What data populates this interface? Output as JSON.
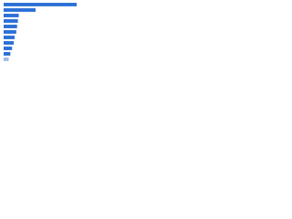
{
  "chart_data": {
    "type": "bar",
    "orientation": "horizontal",
    "categories": [
      null,
      null,
      null,
      null,
      null,
      null,
      null,
      null,
      null,
      null,
      null
    ],
    "values": [
      87,
      38,
      18,
      17,
      16,
      15,
      13,
      12,
      10,
      8,
      6
    ],
    "colors": [
      "#2a6fd6",
      "#2a6fd6",
      "#2a6fd6",
      "#2a6fd6",
      "#2a6fd6",
      "#2a6fd6",
      "#2a6fd6",
      "#2a6fd6",
      "#2a6fd6",
      "#2a6fd6",
      "#9fbbe6"
    ],
    "ylim": [
      0,
      100
    ]
  }
}
